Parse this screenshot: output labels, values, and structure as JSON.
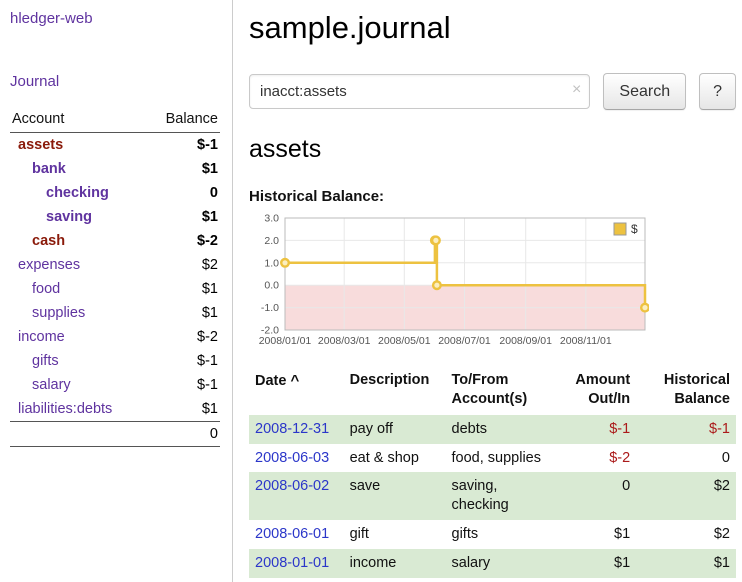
{
  "sidebar": {
    "app_title": "hledger-web",
    "journal_link": "Journal",
    "table": {
      "col_account": "Account",
      "col_balance": "Balance"
    },
    "accounts": [
      {
        "name": "assets",
        "balance": "$-1",
        "depth": 1
      },
      {
        "name": "bank",
        "balance": "$1",
        "depth": 2
      },
      {
        "name": "checking",
        "balance": "0",
        "depth": 3
      },
      {
        "name": "saving",
        "balance": "$1",
        "depth": 3
      },
      {
        "name": "cash",
        "balance": "$-2",
        "depth": 2
      },
      {
        "name": "expenses",
        "balance": "$2",
        "depth": 1
      },
      {
        "name": "food",
        "balance": "$1",
        "depth": 2
      },
      {
        "name": "supplies",
        "balance": "$1",
        "depth": 2
      },
      {
        "name": "income",
        "balance": "$-2",
        "depth": 1
      },
      {
        "name": "gifts",
        "balance": "$-1",
        "depth": 2
      },
      {
        "name": "salary",
        "balance": "$-1",
        "depth": 2
      },
      {
        "name": "liabilities:debts",
        "balance": "$1",
        "depth": 1
      }
    ],
    "total": "0"
  },
  "main": {
    "title": "sample.journal",
    "search": {
      "value": "inacct:assets",
      "clear_icon": "×",
      "button": "Search",
      "help_button": "?"
    },
    "account_heading": "assets",
    "chart_label": "Historical Balance:"
  },
  "chart_data": {
    "type": "line",
    "step": true,
    "title": "Historical Balance:",
    "series": [
      {
        "name": "$",
        "points": [
          [
            "2008-01-01",
            1
          ],
          [
            "2008-06-01",
            2
          ],
          [
            "2008-06-02",
            2
          ],
          [
            "2008-06-03",
            0
          ],
          [
            "2008-12-31",
            -1
          ]
        ]
      }
    ],
    "xrange": [
      "2008-01-01",
      "2008-12-31"
    ],
    "ylim": [
      -2,
      3
    ],
    "yticks": [
      {
        "v": 3,
        "label": "3.0"
      },
      {
        "v": 2,
        "label": "2.0"
      },
      {
        "v": 1,
        "label": "1.0"
      },
      {
        "v": 0,
        "label": "0.0"
      },
      {
        "v": -1,
        "label": "-1.0"
      },
      {
        "v": -2,
        "label": "-2.0"
      }
    ],
    "xticks": [
      {
        "d": "2008-01-01",
        "label": "2008/01/01"
      },
      {
        "d": "2008-03-01",
        "label": "2008/03/01"
      },
      {
        "d": "2008-05-01",
        "label": "2008/05/01"
      },
      {
        "d": "2008-07-01",
        "label": "2008/07/01"
      },
      {
        "d": "2008-09-01",
        "label": "2008/09/01"
      },
      {
        "d": "2008-11-01",
        "label": "2008/11/01"
      }
    ],
    "legend": {
      "position": "top-right",
      "entries": [
        {
          "label": "$",
          "color": "#edc240"
        }
      ]
    },
    "colors": {
      "line": "#edc240",
      "marker_fill": "#fbeebf",
      "negative_region": "#f8dcdc",
      "grid": "#e8e8e8",
      "border": "#bbbbbb"
    }
  },
  "register": {
    "columns": [
      "Date",
      "Description",
      "To/From Account(s)",
      "Amount Out/In",
      "Historical Balance"
    ],
    "sort_icon": "^",
    "rows": [
      {
        "date": "2008-12-31",
        "description": "pay off",
        "accounts": "debts",
        "amount": "$-1",
        "balance": "$-1"
      },
      {
        "date": "2008-06-03",
        "description": "eat & shop",
        "accounts": "food, supplies",
        "amount": "$-2",
        "balance": "0"
      },
      {
        "date": "2008-06-02",
        "description": "save",
        "accounts": "saving, checking",
        "amount": "0",
        "balance": "$2"
      },
      {
        "date": "2008-06-01",
        "description": "gift",
        "accounts": "gifts",
        "amount": "$1",
        "balance": "$2"
      },
      {
        "date": "2008-01-01",
        "description": "income",
        "accounts": "salary",
        "amount": "$1",
        "balance": "$1"
      }
    ]
  },
  "colors": {
    "link_purple": "#5f339f",
    "link_blue": "#2b36c9",
    "negative_red": "#a40000",
    "negative_rose": "#b35a60",
    "account_name_negative": "#8a1a0a",
    "row_green": "#d9ead3"
  }
}
